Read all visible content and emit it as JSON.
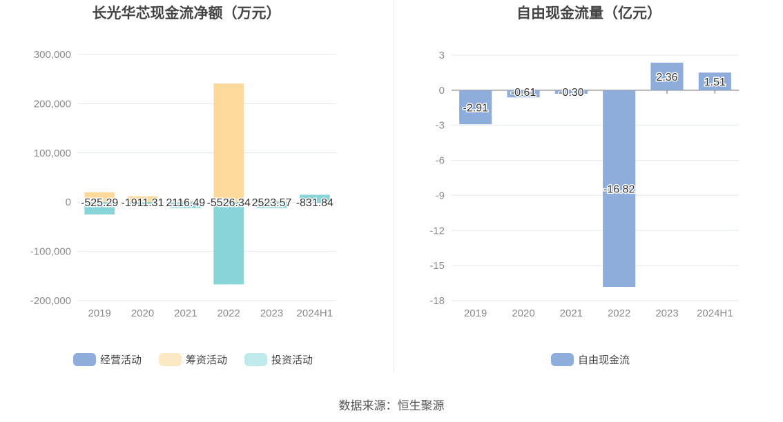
{
  "colors": {
    "operating": "#8eaddb",
    "financing": "#fdd99c",
    "investing": "#87d5d9",
    "legend_financing": "#fde8c6",
    "legend_investing": "#c0e9eb",
    "free_cash_flow": "#8eaddb"
  },
  "source": "数据来源：恒生聚源",
  "chart_data": [
    {
      "type": "bar",
      "title": "长光华芯现金流净额（万元）",
      "categories": [
        "2019",
        "2020",
        "2021",
        "2022",
        "2023",
        "2024H1"
      ],
      "ylim": [
        -200000,
        300000
      ],
      "yticks": [
        "300,000",
        "200,000",
        "100,000",
        "0",
        "-100,000",
        "-200,000"
      ],
      "ytick_values": [
        300000,
        200000,
        100000,
        0,
        -100000,
        -200000
      ],
      "grid": true,
      "legend_position": "bottom",
      "series": [
        {
          "name": "经营活动",
          "key": "operating",
          "values": [
            -525.29,
            -1911.31,
            2116.49,
            -5526.34,
            2523.57,
            -831.84
          ]
        },
        {
          "name": "筹资活动",
          "key": "financing",
          "values": [
            20000,
            12000,
            1500,
            241000,
            2000,
            1500
          ]
        },
        {
          "name": "投资活动",
          "key": "investing",
          "values": [
            -25000,
            -6000,
            -12000,
            -167000,
            -12000,
            15000
          ]
        }
      ],
      "data_labels": [
        "-525.29",
        "-1911.31",
        "2116.49",
        "-5526.34",
        "2523.57",
        "-831.84"
      ]
    },
    {
      "type": "bar",
      "title": "自由现金流量（亿元）",
      "categories": [
        "2019",
        "2020",
        "2021",
        "2022",
        "2023",
        "2024H1"
      ],
      "ylim": [
        -18,
        3
      ],
      "yticks": [
        "3",
        "0",
        "-3",
        "-6",
        "-9",
        "-12",
        "-15",
        "-18"
      ],
      "ytick_values": [
        3,
        0,
        -3,
        -6,
        -9,
        -12,
        -15,
        -18
      ],
      "grid": true,
      "legend_position": "bottom",
      "series": [
        {
          "name": "自由现金流",
          "key": "free_cash_flow",
          "values": [
            -2.91,
            -0.61,
            -0.3,
            -16.82,
            2.36,
            1.51
          ]
        }
      ],
      "data_labels": [
        "-2.91",
        "-0.61",
        "-0.30",
        "-16.82",
        "2.36",
        "1.51"
      ]
    }
  ]
}
